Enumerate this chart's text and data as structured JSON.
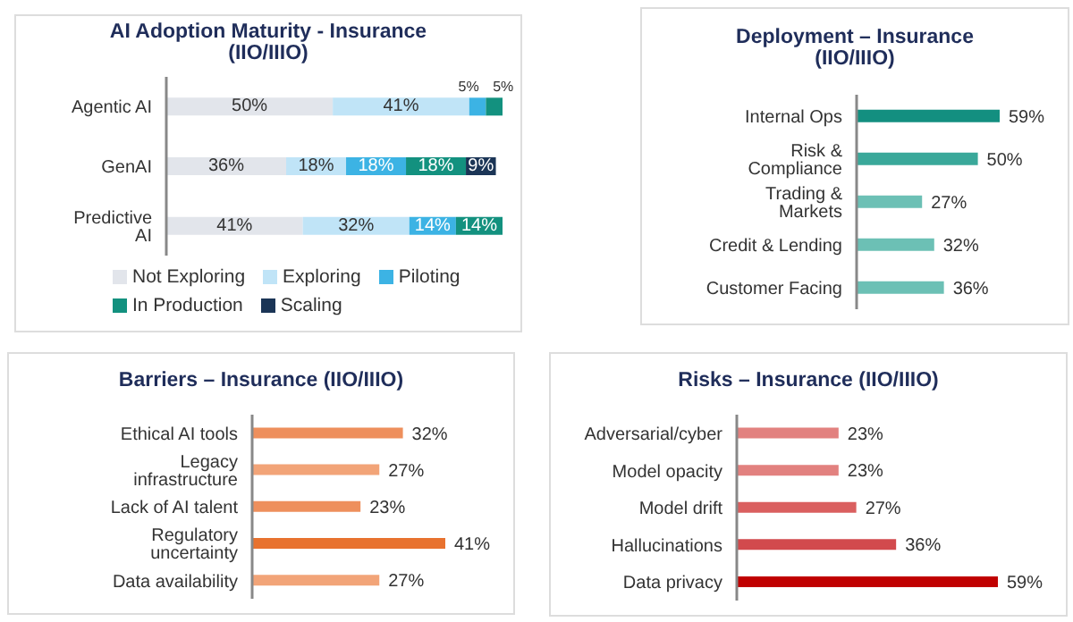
{
  "chart_data": [
    {
      "type": "bar",
      "title": "AI Adoption Maturity - Insurance (IIO/IIIO)",
      "orientation": "horizontal",
      "stacked": true,
      "legend": "bottom",
      "tick_labels": "y",
      "categories": [
        "Agentic AI",
        "GenAI",
        "Predictive AI"
      ],
      "series": [
        {
          "name": "Not Exploring",
          "color": "#e2e5eb",
          "values": [
            50,
            36,
            41
          ],
          "value_labels": [
            "50%",
            "36%",
            "41%"
          ]
        },
        {
          "name": "Exploring",
          "color": "#c0e4f7",
          "values": [
            41,
            18,
            32
          ],
          "value_labels": [
            "41%",
            "18%",
            "32%"
          ]
        },
        {
          "name": "Piloting",
          "color": "#3cb3e4",
          "values": [
            5,
            18,
            14
          ],
          "value_labels": [
            "5%",
            "18%",
            "14%"
          ]
        },
        {
          "name": "In Production",
          "color": "#13917f",
          "values": [
            5,
            18,
            14
          ],
          "value_labels": [
            "5%",
            "18%",
            "14%"
          ]
        },
        {
          "name": "Scaling",
          "color": "#1b3556",
          "values": [
            null,
            9,
            null
          ],
          "value_labels": [
            null,
            "9%",
            null
          ]
        }
      ]
    },
    {
      "type": "bar",
      "title": "Deployment – Insurance (IIO/IIIO)",
      "orientation": "horizontal",
      "tick_labels": "y",
      "categories": [
        "Internal Ops",
        "Risk & Compliance",
        "Trading & Markets",
        "Credit & Lending",
        "Customer Facing"
      ],
      "values": [
        59,
        50,
        27,
        32,
        36
      ],
      "value_labels": [
        "59%",
        "50%",
        "27%",
        "32%",
        "36%"
      ],
      "colors": [
        "#138f80",
        "#3aa89a",
        "#6cc0b5",
        "#6cc0b5",
        "#6cc0b5"
      ]
    },
    {
      "type": "bar",
      "title": "Barriers – Insurance (IIO/IIIO)",
      "orientation": "horizontal",
      "tick_labels": "y",
      "categories": [
        "Ethical AI tools",
        "Legacy infrastructure",
        "Lack of AI talent",
        "Regulatory uncertainty",
        "Data availability"
      ],
      "values": [
        32,
        27,
        23,
        41,
        27
      ],
      "value_labels": [
        "32%",
        "27%",
        "23%",
        "41%",
        "27%"
      ],
      "colors": [
        "#ee8f5c",
        "#f2a478",
        "#ee8f5c",
        "#e8722f",
        "#f2a478"
      ]
    },
    {
      "type": "bar",
      "title": "Risks – Insurance (IIO/IIIO)",
      "orientation": "horizontal",
      "tick_labels": "y",
      "categories": [
        "Adversarial/cyber",
        "Model opacity",
        "Model drift",
        "Hallucinations",
        "Data privacy"
      ],
      "values": [
        23,
        23,
        27,
        36,
        59
      ],
      "value_labels": [
        "23%",
        "23%",
        "27%",
        "36%",
        "59%"
      ],
      "colors": [
        "#e2817f",
        "#e2817f",
        "#da5f5f",
        "#d24a4d",
        "#c00000"
      ]
    }
  ]
}
